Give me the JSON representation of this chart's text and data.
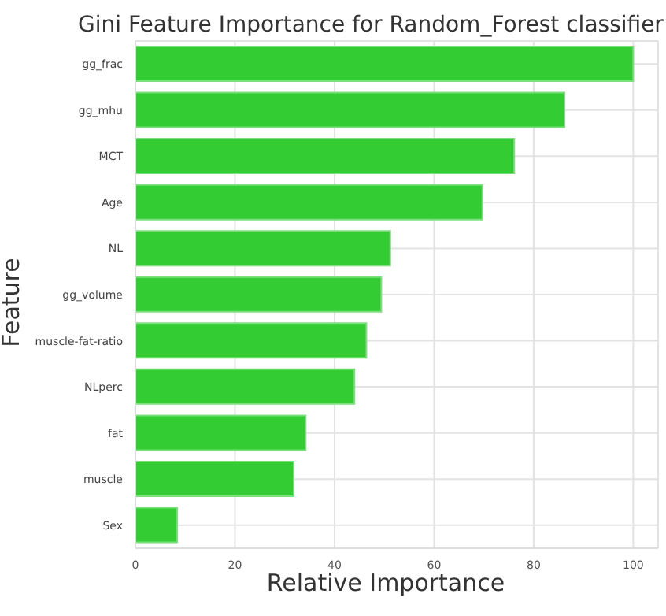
{
  "chart_data": {
    "type": "bar",
    "orientation": "horizontal",
    "title": "Gini Feature Importance for Random_Forest classifier",
    "xlabel": "Relative Importance",
    "ylabel": "Feature",
    "categories": [
      "gg_frac",
      "gg_mhu",
      "MCT",
      "Age",
      "NL",
      "gg_volume",
      "muscle-fat-ratio",
      "NLperc",
      "fat",
      "muscle",
      "Sex"
    ],
    "values": [
      100,
      86.2,
      76.1,
      69.7,
      51.2,
      49.4,
      46.4,
      44.0,
      34.2,
      31.8,
      8.4
    ],
    "color": "#33cc33",
    "xlim": [
      0,
      105
    ],
    "xticks": [
      0,
      20,
      40,
      60,
      80,
      100
    ],
    "grid": true
  }
}
